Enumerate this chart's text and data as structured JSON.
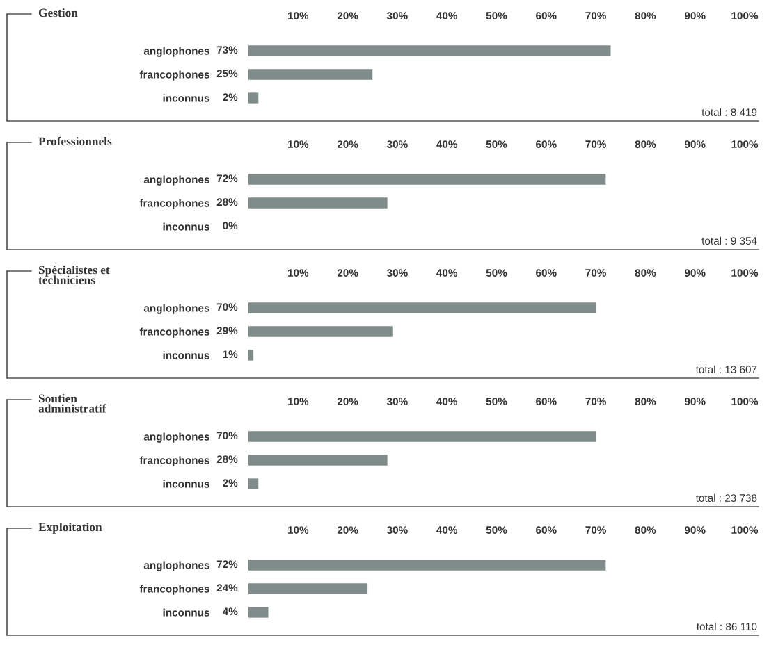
{
  "chart_data": [
    {
      "type": "bar",
      "orientation": "horizontal",
      "title": "Gestion",
      "categories": [
        "anglophones",
        "francophones",
        "inconnus"
      ],
      "values": [
        73,
        25,
        2
      ],
      "value_labels": [
        "73%",
        "25%",
        "2%"
      ],
      "color": "#7f8c89",
      "xlim": [
        0,
        100
      ],
      "xticks": [
        {
          "value": 10,
          "label": "10%"
        },
        {
          "value": 20,
          "label": "20%"
        },
        {
          "value": 30,
          "label": "30%"
        },
        {
          "value": 40,
          "label": "40%"
        },
        {
          "value": 50,
          "label": "50%"
        },
        {
          "value": 60,
          "label": "60%"
        },
        {
          "value": 70,
          "label": "70%"
        },
        {
          "value": 80,
          "label": "80%"
        },
        {
          "value": 90,
          "label": "90%"
        },
        {
          "value": 100,
          "label": "100%"
        }
      ],
      "annotations": [
        "total : 8 419"
      ]
    },
    {
      "type": "bar",
      "orientation": "horizontal",
      "title": "Professionnels",
      "categories": [
        "anglophones",
        "francophones",
        "inconnus"
      ],
      "values": [
        72,
        28,
        0
      ],
      "value_labels": [
        "72%",
        "28%",
        "0%"
      ],
      "color": "#7f8c89",
      "xlim": [
        0,
        100
      ],
      "xticks": [
        {
          "value": 10,
          "label": "10%"
        },
        {
          "value": 20,
          "label": "20%"
        },
        {
          "value": 30,
          "label": "30%"
        },
        {
          "value": 40,
          "label": "40%"
        },
        {
          "value": 50,
          "label": "50%"
        },
        {
          "value": 60,
          "label": "60%"
        },
        {
          "value": 70,
          "label": "70%"
        },
        {
          "value": 80,
          "label": "80%"
        },
        {
          "value": 90,
          "label": "90%"
        },
        {
          "value": 100,
          "label": "100%"
        }
      ],
      "annotations": [
        "total : 9 354"
      ]
    },
    {
      "type": "bar",
      "orientation": "horizontal",
      "title": "Spécialistes et\ntechniciens",
      "categories": [
        "anglophones",
        "francophones",
        "inconnus"
      ],
      "values": [
        70,
        29,
        1
      ],
      "value_labels": [
        "70%",
        "29%",
        "1%"
      ],
      "color": "#7f8c89",
      "xlim": [
        0,
        100
      ],
      "xticks": [
        {
          "value": 10,
          "label": "10%"
        },
        {
          "value": 20,
          "label": "20%"
        },
        {
          "value": 30,
          "label": "30%"
        },
        {
          "value": 40,
          "label": "40%"
        },
        {
          "value": 50,
          "label": "50%"
        },
        {
          "value": 60,
          "label": "60%"
        },
        {
          "value": 70,
          "label": "70%"
        },
        {
          "value": 80,
          "label": "80%"
        },
        {
          "value": 90,
          "label": "90%"
        },
        {
          "value": 100,
          "label": "100%"
        }
      ],
      "annotations": [
        "total : 13 607"
      ]
    },
    {
      "type": "bar",
      "orientation": "horizontal",
      "title": "Soutien\nadministratif",
      "categories": [
        "anglophones",
        "francophones",
        "inconnus"
      ],
      "values": [
        70,
        28,
        2
      ],
      "value_labels": [
        "70%",
        "28%",
        "2%"
      ],
      "color": "#7f8c89",
      "xlim": [
        0,
        100
      ],
      "xticks": [
        {
          "value": 10,
          "label": "10%"
        },
        {
          "value": 20,
          "label": "20%"
        },
        {
          "value": 30,
          "label": "30%"
        },
        {
          "value": 40,
          "label": "40%"
        },
        {
          "value": 50,
          "label": "50%"
        },
        {
          "value": 60,
          "label": "60%"
        },
        {
          "value": 70,
          "label": "70%"
        },
        {
          "value": 80,
          "label": "80%"
        },
        {
          "value": 90,
          "label": "90%"
        },
        {
          "value": 100,
          "label": "100%"
        }
      ],
      "annotations": [
        "total : 23 738"
      ]
    },
    {
      "type": "bar",
      "orientation": "horizontal",
      "title": "Exploitation",
      "categories": [
        "anglophones",
        "francophones",
        "inconnus"
      ],
      "values": [
        72,
        24,
        4
      ],
      "value_labels": [
        "72%",
        "24%",
        "4%"
      ],
      "color": "#7f8c89",
      "xlim": [
        0,
        100
      ],
      "xticks": [
        {
          "value": 10,
          "label": "10%"
        },
        {
          "value": 20,
          "label": "20%"
        },
        {
          "value": 30,
          "label": "30%"
        },
        {
          "value": 40,
          "label": "40%"
        },
        {
          "value": 50,
          "label": "50%"
        },
        {
          "value": 60,
          "label": "60%"
        },
        {
          "value": 70,
          "label": "70%"
        },
        {
          "value": 80,
          "label": "80%"
        },
        {
          "value": 90,
          "label": "90%"
        },
        {
          "value": 100,
          "label": "100%"
        }
      ],
      "annotations": [
        "total : 86 110"
      ]
    }
  ]
}
